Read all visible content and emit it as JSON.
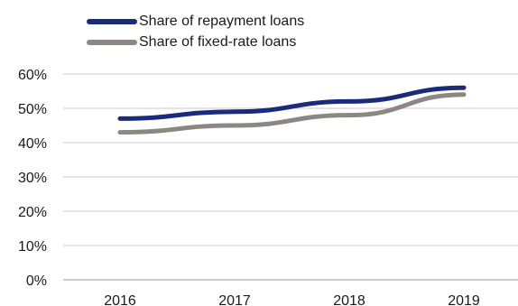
{
  "chart_data": {
    "type": "line",
    "title": "",
    "xlabel": "",
    "ylabel": "",
    "x": [
      "2016",
      "2017",
      "2018",
      "2019"
    ],
    "ylim": [
      0,
      60
    ],
    "yticks": [
      0,
      10,
      20,
      30,
      40,
      50,
      60
    ],
    "ytick_labels": [
      "0%",
      "10%",
      "20%",
      "30%",
      "40%",
      "50%",
      "60%"
    ],
    "grid": "horizontal",
    "legend_position": "top-left",
    "series": [
      {
        "name": "Share of repayment loans",
        "values": [
          47,
          49,
          52,
          56
        ],
        "color": "#1b2a7a"
      },
      {
        "name": "Share of fixed-rate loans",
        "values": [
          43,
          45,
          48,
          54
        ],
        "color": "#8c8781"
      }
    ]
  }
}
